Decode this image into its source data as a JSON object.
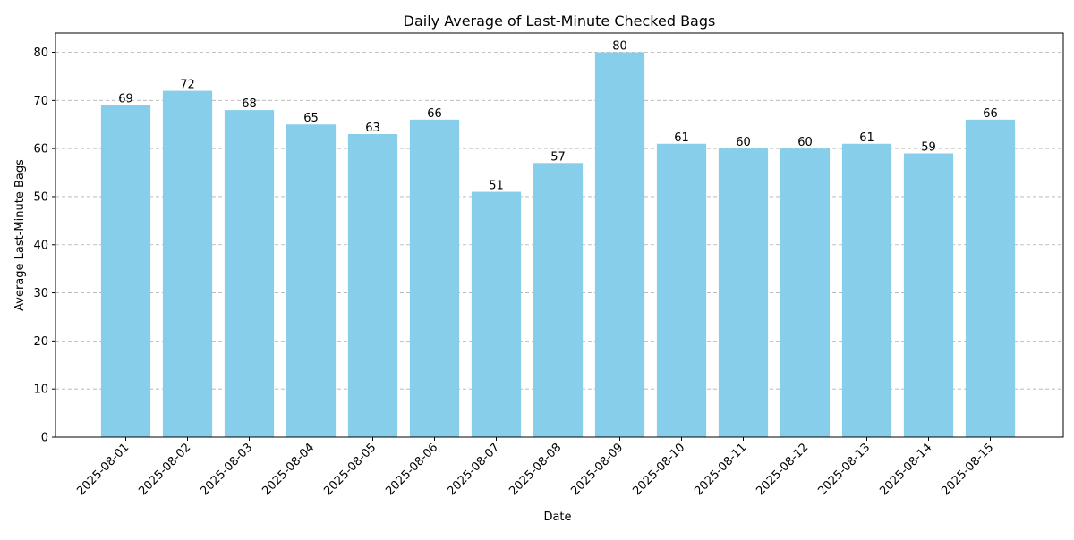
{
  "chart_data": {
    "type": "bar",
    "title": "Daily Average of Last-Minute Checked Bags",
    "xlabel": "Date",
    "ylabel": "Average Last-Minute Bags",
    "categories": [
      "2025-08-01",
      "2025-08-02",
      "2025-08-03",
      "2025-08-04",
      "2025-08-05",
      "2025-08-06",
      "2025-08-07",
      "2025-08-08",
      "2025-08-09",
      "2025-08-10",
      "2025-08-11",
      "2025-08-12",
      "2025-08-13",
      "2025-08-14",
      "2025-08-15"
    ],
    "values": [
      69,
      72,
      68,
      65,
      63,
      66,
      51,
      57,
      80,
      61,
      60,
      60,
      61,
      59,
      66
    ],
    "ylim": [
      0,
      84
    ],
    "yticks": [
      0,
      10,
      20,
      30,
      40,
      50,
      60,
      70,
      80
    ],
    "grid": "y-dashed",
    "bar_color": "#87CEEB",
    "show_data_labels": true
  }
}
